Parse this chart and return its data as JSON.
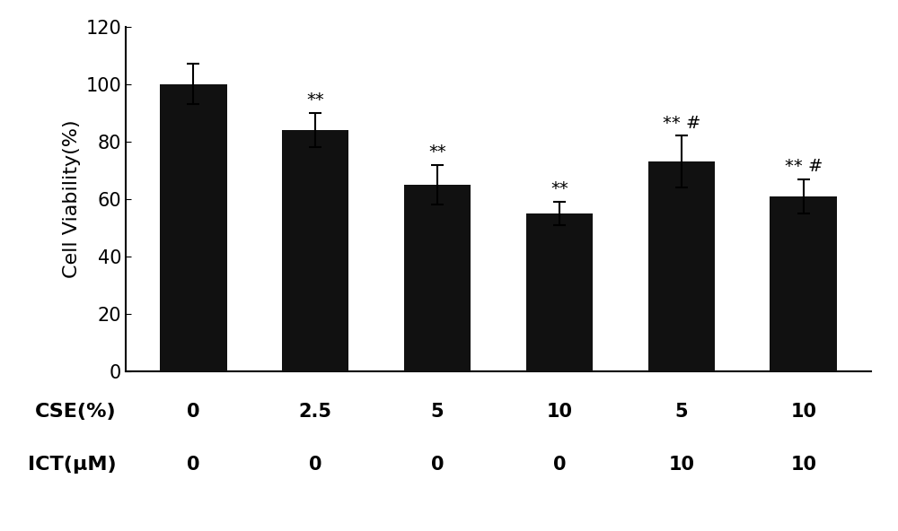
{
  "categories": [
    "0",
    "2.5",
    "5",
    "10",
    "5",
    "10"
  ],
  "values": [
    100,
    84,
    65,
    55,
    73,
    61
  ],
  "errors": [
    7,
    6,
    7,
    4,
    9,
    6
  ],
  "bar_color": "#111111",
  "bar_width": 0.55,
  "ylabel": "Cell Viability(%)",
  "ylim": [
    0,
    120
  ],
  "yticks": [
    0,
    20,
    40,
    60,
    80,
    100,
    120
  ],
  "background_color": "#ffffff",
  "cse_label": "CSE(%)",
  "ict_label": "ICT(μM)",
  "cse_values": [
    "0",
    "2.5",
    "5",
    "10",
    "5",
    "10"
  ],
  "ict_values": [
    "0",
    "0",
    "0",
    "0",
    "10",
    "10"
  ],
  "annotations": [
    "",
    "**",
    "**",
    "**",
    "** #",
    "** #"
  ],
  "label_fontsize": 16,
  "tick_fontsize": 15,
  "annot_fontsize": 14,
  "row_label_fontsize": 16,
  "row_val_fontsize": 15
}
